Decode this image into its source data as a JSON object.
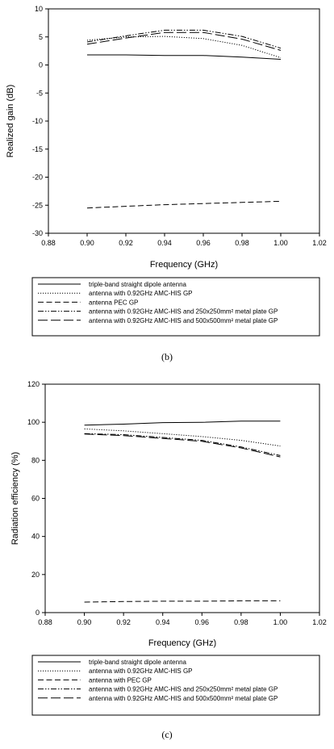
{
  "chart_data": [
    {
      "type": "line",
      "xlabel": "Frequency (GHz)",
      "ylabel": "Realized gain (dB)",
      "xlim": [
        0.88,
        1.02
      ],
      "ylim": [
        -30,
        10
      ],
      "xticks": [
        "0.88",
        "0.90",
        "0.92",
        "0.94",
        "0.96",
        "0.98",
        "1.00",
        "1.02"
      ],
      "yticks": [
        "10",
        "5",
        "0",
        "-5",
        "-10",
        "-15",
        "-20",
        "-25",
        "-30"
      ],
      "grid": false,
      "legend_position": "below",
      "caption": "(b)",
      "series": [
        {
          "name": "triple-band straight dipole antenna",
          "style": "solid",
          "x": [
            0.9,
            0.92,
            0.94,
            0.96,
            0.98,
            1.0
          ],
          "y": [
            1.8,
            1.8,
            1.7,
            1.7,
            1.4,
            1.0
          ]
        },
        {
          "name": "antenna with 0.92GHz AMC-HIS GP",
          "style": "dotted",
          "x": [
            0.9,
            0.92,
            0.94,
            0.96,
            0.98,
            1.0
          ],
          "y": [
            4.4,
            5.0,
            5.1,
            4.7,
            3.5,
            1.3
          ]
        },
        {
          "name": "antenna PEC GP",
          "style": "dashed",
          "x": [
            0.9,
            0.92,
            0.94,
            0.96,
            0.98,
            1.0
          ],
          "y": [
            -25.5,
            -25.2,
            -24.9,
            -24.7,
            -24.5,
            -24.3
          ]
        },
        {
          "name": "antenna with 0.92GHz AMC-HIS and 250x250mm² metal plate GP",
          "style": "dashdotdot",
          "x": [
            0.9,
            0.92,
            0.94,
            0.96,
            0.98,
            1.0
          ],
          "y": [
            4.1,
            5.2,
            6.2,
            6.2,
            5.1,
            3.0
          ]
        },
        {
          "name": "antenna with 0.92GHz AMC-HIS and 500x500mm² metal plate GP",
          "style": "longdash",
          "x": [
            0.9,
            0.92,
            0.94,
            0.96,
            0.98,
            1.0
          ],
          "y": [
            3.7,
            4.8,
            5.8,
            5.8,
            4.6,
            2.6
          ]
        }
      ]
    },
    {
      "type": "line",
      "xlabel": "Frequency (GHz)",
      "ylabel": "Radiation efficiency (%)",
      "xlim": [
        0.88,
        1.02
      ],
      "ylim": [
        0,
        120
      ],
      "xticks": [
        "0.88",
        "0.90",
        "0.92",
        "0.94",
        "0.96",
        "0.98",
        "1.00",
        "1.02"
      ],
      "yticks": [
        "120",
        "100",
        "80",
        "60",
        "40",
        "20",
        "0"
      ],
      "grid": false,
      "legend_position": "below",
      "caption": "(c)",
      "series": [
        {
          "name": "triple-band straight dipole antenna",
          "style": "solid",
          "x": [
            0.9,
            0.92,
            0.94,
            0.96,
            0.98,
            1.0
          ],
          "y": [
            98.5,
            99.0,
            99.8,
            100.0,
            100.6,
            100.6
          ]
        },
        {
          "name": "antenna with 0.92GHz AMC-HIS GP",
          "style": "dotted",
          "x": [
            0.9,
            0.92,
            0.94,
            0.96,
            0.98,
            1.0
          ],
          "y": [
            96.5,
            95.5,
            94.0,
            92.5,
            90.5,
            87.5
          ]
        },
        {
          "name": "antenna with PEC GP",
          "style": "dashed",
          "x": [
            0.9,
            0.92,
            0.94,
            0.96,
            0.98,
            1.0
          ],
          "y": [
            5.5,
            5.8,
            6.0,
            6.0,
            6.2,
            6.2
          ]
        },
        {
          "name": "antenna with 0.92GHz AMC-HIS and 250x250mm² metal plate GP",
          "style": "dashdotdot",
          "x": [
            0.9,
            0.92,
            0.94,
            0.96,
            0.98,
            1.0
          ],
          "y": [
            94.0,
            93.5,
            92.0,
            90.5,
            87.0,
            82.5
          ]
        },
        {
          "name": "antenna with 0.92GHz AMC-HIS and 500x500mm² metal plate GP",
          "style": "longdash",
          "x": [
            0.9,
            0.92,
            0.94,
            0.96,
            0.98,
            1.0
          ],
          "y": [
            93.8,
            93.0,
            91.5,
            90.0,
            86.5,
            81.8
          ]
        }
      ]
    }
  ]
}
